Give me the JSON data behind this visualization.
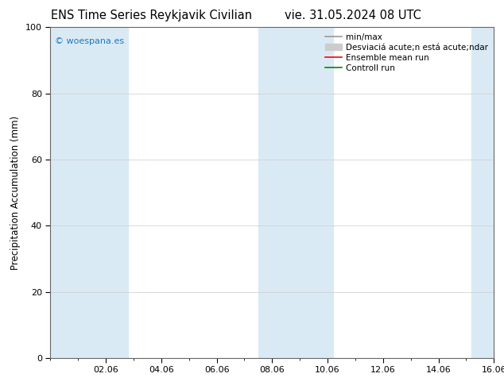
{
  "title": "ENS Time Series Reykjavik Civilian",
  "title2": "vie. 31.05.2024 08 UTC",
  "ylabel": "Precipitation Accumulation (mm)",
  "ylim": [
    0,
    100
  ],
  "yticks": [
    0,
    20,
    40,
    60,
    80,
    100
  ],
  "xlim_start": 0.0,
  "xlim_end": 16.0,
  "xtick_labels": [
    "02.06",
    "04.06",
    "06.06",
    "08.06",
    "10.06",
    "12.06",
    "14.06",
    "16.06"
  ],
  "xtick_positions": [
    2,
    4,
    6,
    8,
    10,
    12,
    14,
    16
  ],
  "shaded_bands": [
    {
      "x_start": 0.0,
      "x_end": 2.8
    },
    {
      "x_start": 7.5,
      "x_end": 10.2
    },
    {
      "x_start": 15.2,
      "x_end": 16.0
    }
  ],
  "band_color": "#daeaf5",
  "watermark_text": "© woespana.es",
  "watermark_color": "#1a7abf",
  "legend_min_max_color": "#999999",
  "legend_std_color": "#cccccc",
  "legend_mean_color": "#ff0000",
  "legend_ctrl_color": "#008800",
  "grid_color": "#cccccc",
  "background_color": "#ffffff",
  "title_fontsize": 10.5,
  "tick_fontsize": 8,
  "ylabel_fontsize": 8.5,
  "legend_fontsize": 7.5,
  "watermark_fontsize": 8
}
